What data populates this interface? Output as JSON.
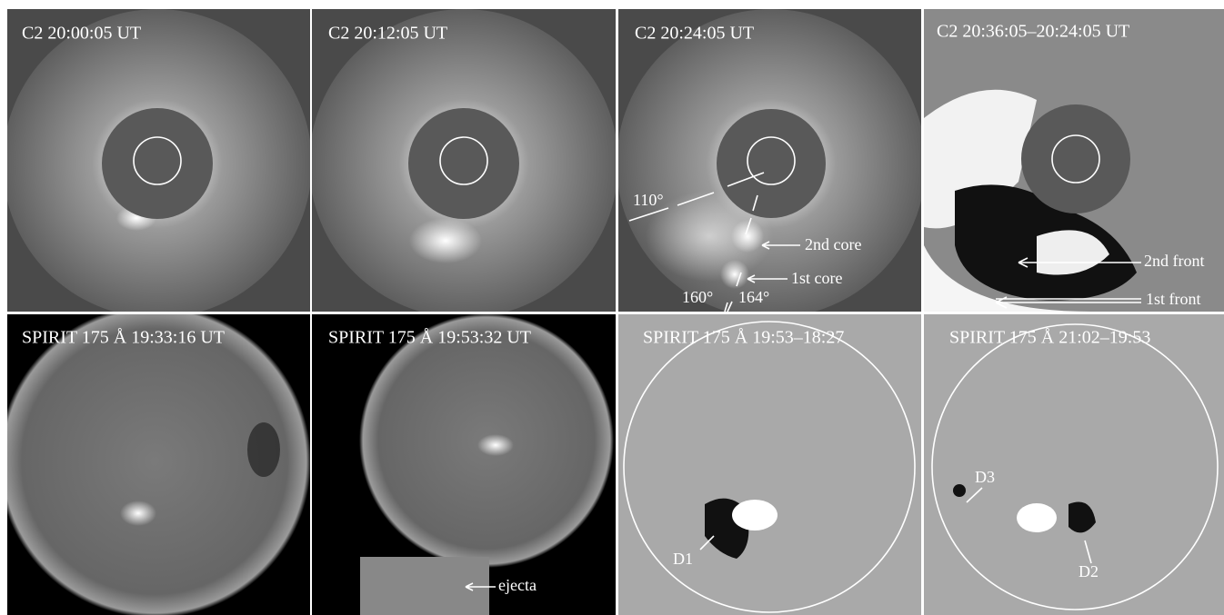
{
  "panels": [
    {
      "title": "C2 20:00:05 UT"
    },
    {
      "title": "C2 20:12:05 UT"
    },
    {
      "title": "C2 20:24:05 UT",
      "annotations": [
        "110°",
        "2nd core",
        "1st core",
        "160°",
        "164°"
      ]
    },
    {
      "title": "C2 20:36:05–20:24:05 UT",
      "annotations": [
        "2nd front",
        "1st front"
      ]
    },
    {
      "title": "SPIRIT 175 Å 19:33:16 UT"
    },
    {
      "title": "SPIRIT 175 Å 19:53:32 UT",
      "annotations": [
        "ejecta"
      ]
    },
    {
      "title": "SPIRIT 175 Å 19:53–18:27",
      "annotations": [
        "D1"
      ]
    },
    {
      "title": "SPIRIT 175 Å 21:02–19:53",
      "annotations": [
        "D3",
        "D2"
      ]
    }
  ]
}
